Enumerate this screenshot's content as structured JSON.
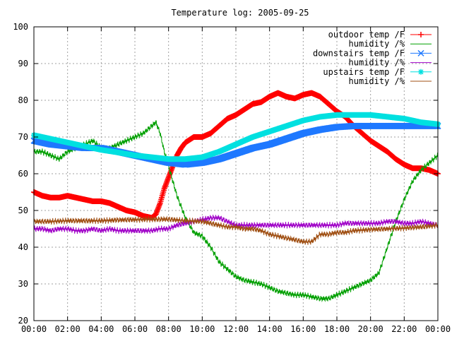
{
  "chart_data": {
    "type": "line",
    "title": "Temperature log: 2005-09-25",
    "xlabel": "",
    "ylabel": "",
    "ylim": [
      20,
      100
    ],
    "yticks": [
      20,
      30,
      40,
      50,
      60,
      70,
      80,
      90,
      100
    ],
    "xlim": [
      0,
      24
    ],
    "xticks": [
      {
        "value": 0,
        "label": "00:00"
      },
      {
        "value": 2,
        "label": "02:00"
      },
      {
        "value": 4,
        "label": "04:00"
      },
      {
        "value": 6,
        "label": "06:00"
      },
      {
        "value": 8,
        "label": "08:00"
      },
      {
        "value": 10,
        "label": "10:00"
      },
      {
        "value": 12,
        "label": "12:00"
      },
      {
        "value": 14,
        "label": "14:00"
      },
      {
        "value": 16,
        "label": "16:00"
      },
      {
        "value": 18,
        "label": "18:00"
      },
      {
        "value": 20,
        "label": "20:00"
      },
      {
        "value": 22,
        "label": "22:00"
      },
      {
        "value": 24,
        "label": "00:00"
      }
    ],
    "grid": true,
    "legend_position": "top-right",
    "series": [
      {
        "name": "outdoor temp /F",
        "color": "#ff0000",
        "marker": "plus",
        "x": [
          0,
          0.5,
          1,
          1.5,
          2,
          2.5,
          3,
          3.5,
          4,
          4.5,
          5,
          5.5,
          6,
          6.5,
          7,
          7.25,
          7.5,
          7.75,
          8,
          8.25,
          8.5,
          8.75,
          9,
          9.5,
          10,
          10.5,
          11,
          11.5,
          12,
          12.5,
          13,
          13.5,
          14,
          14.5,
          15,
          15.5,
          16,
          16.5,
          17,
          17.5,
          18,
          18.5,
          19,
          19.5,
          20,
          20.5,
          21,
          21.5,
          22,
          22.5,
          23,
          23.5,
          24
        ],
        "y": [
          55,
          54,
          53.5,
          53.5,
          54,
          53.5,
          53,
          52.5,
          52.5,
          52,
          51,
          50,
          49.5,
          48.5,
          48,
          49,
          52,
          56,
          59,
          62,
          65,
          67,
          68.5,
          70,
          70,
          71,
          73,
          75,
          76,
          77.5,
          79,
          79.5,
          81,
          82,
          81,
          80.5,
          81.5,
          82,
          81,
          79,
          77,
          75.5,
          73,
          71,
          69,
          67.5,
          66,
          64,
          62.5,
          61.5,
          61.5,
          61,
          60
        ]
      },
      {
        "name": "humidity /%",
        "color": "#00a000",
        "marker": "none",
        "x": [
          0,
          0.5,
          1,
          1.5,
          2,
          2.5,
          3,
          3.5,
          4,
          4.5,
          5,
          5.5,
          6,
          6.5,
          7,
          7.25,
          7.5,
          7.75,
          8,
          8.25,
          8.5,
          9,
          9.5,
          10,
          10.5,
          11,
          11.5,
          12,
          12.5,
          13,
          13.5,
          14,
          14.5,
          15,
          15.5,
          16,
          16.5,
          17,
          17.5,
          18,
          18.5,
          19,
          19.5,
          20,
          20.5,
          21,
          21.5,
          22,
          22.5,
          23,
          23.5,
          24
        ],
        "y": [
          66,
          66,
          65,
          64,
          66,
          67,
          68,
          69,
          67,
          67,
          68,
          69,
          70,
          71,
          73,
          74,
          71,
          66,
          62,
          58,
          54,
          48,
          44,
          43,
          40,
          36,
          34,
          32,
          31,
          30.5,
          30,
          29,
          28,
          27.5,
          27,
          27,
          26.5,
          26,
          26,
          27,
          28,
          29,
          30,
          31,
          33,
          40,
          47,
          53,
          58,
          61,
          63,
          65
        ]
      },
      {
        "name": "downstairs temp /F",
        "color": "#1e78ff",
        "marker": "cross",
        "x": [
          0,
          1,
          2,
          3,
          4,
          5,
          6,
          7,
          8,
          9,
          10,
          11,
          12,
          13,
          14,
          15,
          16,
          17,
          18,
          19,
          20,
          21,
          22,
          23,
          24
        ],
        "y": [
          69,
          68,
          67.5,
          67,
          67,
          66,
          65,
          64,
          63,
          62.5,
          63,
          64,
          65.5,
          67,
          68,
          69.5,
          71,
          72,
          72.7,
          73,
          73,
          73,
          73,
          73,
          73
        ]
      },
      {
        "name": "humidity /%",
        "color": "#a000c8",
        "marker": "none",
        "x": [
          0,
          0.5,
          1,
          1.5,
          2,
          2.5,
          3,
          3.5,
          4,
          4.5,
          5,
          5.5,
          6,
          6.5,
          7,
          7.5,
          8,
          8.5,
          9,
          9.5,
          10,
          10.5,
          11,
          11.5,
          12,
          12.5,
          13,
          13.5,
          14,
          14.5,
          15,
          15.5,
          16,
          16.5,
          17,
          17.5,
          18,
          18.5,
          19,
          19.5,
          20,
          20.5,
          21,
          21.5,
          22,
          22.5,
          23,
          23.5,
          24
        ],
        "y": [
          45,
          45,
          44.5,
          45,
          45,
          44.5,
          44.5,
          45,
          44.5,
          45,
          44.5,
          44.5,
          44.5,
          44.5,
          44.5,
          45,
          45,
          46,
          46.5,
          47,
          47.5,
          48,
          48,
          47,
          46,
          46,
          46,
          46,
          46,
          46,
          46,
          46,
          46,
          46,
          46,
          46,
          46,
          46.5,
          46.5,
          46.5,
          46.5,
          46.5,
          47,
          47,
          46.5,
          46.5,
          47,
          46.5,
          46
        ]
      },
      {
        "name": "upstairs temp /F",
        "color": "#00e0e0",
        "marker": "star",
        "x": [
          0,
          1,
          2,
          3,
          4,
          5,
          6,
          7,
          8,
          9,
          10,
          11,
          12,
          13,
          14,
          15,
          16,
          17,
          18,
          19,
          20,
          21,
          22,
          23,
          24
        ],
        "y": [
          70.5,
          69.5,
          68.5,
          67.5,
          66.5,
          65.8,
          65,
          64.5,
          64,
          64,
          64.5,
          66,
          68,
          70,
          71.5,
          73,
          74.5,
          75.5,
          76,
          76,
          76,
          75.5,
          75,
          74,
          73.5
        ]
      },
      {
        "name": "humidity /%",
        "color": "#a05014",
        "marker": "none",
        "x": [
          0,
          1,
          2,
          3,
          4,
          5,
          6,
          7,
          8,
          9,
          10,
          10.5,
          11,
          11.5,
          12,
          12.5,
          13,
          13.5,
          14,
          14.5,
          15,
          15.5,
          16,
          16.5,
          17,
          17.5,
          18,
          18.5,
          19,
          20,
          21,
          22,
          23,
          24
        ],
        "y": [
          47,
          47,
          47.2,
          47.2,
          47.2,
          47.4,
          47.5,
          47.6,
          47.6,
          47.2,
          47,
          46.5,
          46,
          45.5,
          45.5,
          45,
          45,
          44.5,
          43.5,
          43,
          42.5,
          42,
          41.5,
          41.5,
          43.5,
          43.5,
          44,
          44,
          44.5,
          44.8,
          45,
          45.2,
          45.5,
          46
        ]
      }
    ]
  }
}
